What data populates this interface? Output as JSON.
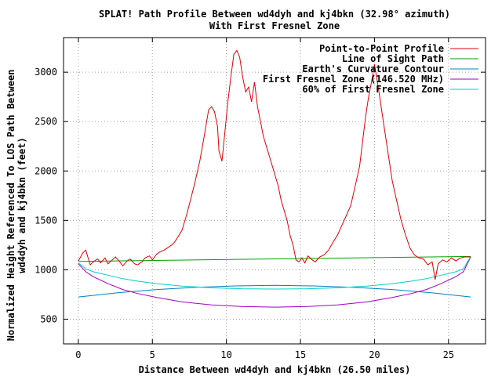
{
  "chart_data": {
    "type": "line",
    "title": "SPLAT! Path Profile Between wd4dyh and kj4bkn (32.98° azimuth)",
    "subtitle": "With First Fresnel Zone",
    "xlabel": "Distance Between wd4dyh and kj4bkn (26.50 miles)",
    "ylabel_line1": "Normalized Height Referenced To LOS Path Between",
    "ylabel_line2": "wd4dyh and kj4bkn (feet)",
    "xlim": [
      -1,
      27.5
    ],
    "ylim": [
      250,
      3350
    ],
    "xticks": [
      0,
      5,
      10,
      15,
      20,
      25
    ],
    "yticks": [
      500,
      1000,
      1500,
      2000,
      2500,
      3000
    ],
    "grid": true,
    "legend_position": "top-right",
    "series": [
      {
        "name": "Point-to-Point Profile",
        "color": "#e00000",
        "x": [
          0,
          0.3,
          0.5,
          0.8,
          1.0,
          1.3,
          1.5,
          1.8,
          2.0,
          2.3,
          2.5,
          2.8,
          3.0,
          3.3,
          3.5,
          3.8,
          4.0,
          4.3,
          4.5,
          4.8,
          5.0,
          5.3,
          5.5,
          5.8,
          6.0,
          6.3,
          6.5,
          6.8,
          7.0,
          7.3,
          7.6,
          7.9,
          8.2,
          8.5,
          8.8,
          9.0,
          9.2,
          9.4,
          9.5,
          9.7,
          9.9,
          10.1,
          10.3,
          10.5,
          10.7,
          10.9,
          11.1,
          11.3,
          11.5,
          11.7,
          11.9,
          12.1,
          12.3,
          12.5,
          12.7,
          12.9,
          13.1,
          13.3,
          13.5,
          13.7,
          13.9,
          14.1,
          14.3,
          14.5,
          14.7,
          14.9,
          15.1,
          15.3,
          15.5,
          15.8,
          16.0,
          16.3,
          16.6,
          16.9,
          17.2,
          17.5,
          17.8,
          18.1,
          18.4,
          18.7,
          19.0,
          19.2,
          19.4,
          19.6,
          19.8,
          20.0,
          20.2,
          20.4,
          20.6,
          20.9,
          21.2,
          21.5,
          21.8,
          22.1,
          22.4,
          22.7,
          23.0,
          23.3,
          23.6,
          23.9,
          24.1,
          24.3,
          24.6,
          24.9,
          25.2,
          25.5,
          25.8,
          26.1,
          26.5
        ],
        "y": [
          1090,
          1170,
          1200,
          1050,
          1080,
          1110,
          1070,
          1120,
          1060,
          1100,
          1130,
          1080,
          1040,
          1090,
          1110,
          1060,
          1050,
          1080,
          1120,
          1140,
          1100,
          1160,
          1180,
          1200,
          1220,
          1250,
          1280,
          1350,
          1400,
          1550,
          1720,
          1900,
          2100,
          2350,
          2620,
          2650,
          2600,
          2450,
          2200,
          2100,
          2400,
          2700,
          2950,
          3180,
          3220,
          3150,
          2950,
          2800,
          2850,
          2700,
          2900,
          2650,
          2500,
          2350,
          2250,
          2150,
          2050,
          1950,
          1850,
          1700,
          1600,
          1500,
          1350,
          1250,
          1100,
          1080,
          1120,
          1070,
          1140,
          1100,
          1080,
          1130,
          1150,
          1200,
          1280,
          1350,
          1450,
          1550,
          1650,
          1850,
          2050,
          2300,
          2550,
          2750,
          2900,
          3080,
          2900,
          2700,
          2500,
          2200,
          1900,
          1700,
          1500,
          1350,
          1220,
          1150,
          1120,
          1110,
          1050,
          1080,
          900,
          1060,
          1100,
          1080,
          1120,
          1090,
          1120,
          1130,
          1130
        ]
      },
      {
        "name": "Line of Sight Path",
        "color": "#00a000",
        "x": [
          0,
          26.5
        ],
        "y": [
          1085,
          1135
        ]
      },
      {
        "name": "Earth's Curvature Contour",
        "color": "#0080c0",
        "x": [
          0,
          2.65,
          5.3,
          7.95,
          10.6,
          13.25,
          15.9,
          18.55,
          21.2,
          23.85,
          26.5
        ],
        "y": [
          725,
          767,
          800,
          823,
          837,
          842,
          837,
          823,
          800,
          767,
          725
        ]
      },
      {
        "name": "First Fresnel Zone (146.520 MHz)",
        "color": "#a000c0",
        "x": [
          0,
          0.5,
          1.0,
          2.0,
          3.0,
          4.0,
          5.3,
          7.0,
          9.0,
          11.0,
          13.25,
          15.5,
          17.5,
          19.5,
          21.2,
          22.5,
          23.5,
          24.5,
          25.5,
          26.0,
          26.5
        ],
        "y": [
          1060,
          980,
          930,
          860,
          800,
          760,
          720,
          675,
          645,
          628,
          622,
          628,
          645,
          675,
          720,
          760,
          800,
          860,
          930,
          980,
          1130
        ]
      },
      {
        "name": "60% of First Fresnel Zone",
        "color": "#00d0d0",
        "x": [
          0,
          0.5,
          1.0,
          2.0,
          3.0,
          4.0,
          5.3,
          7.0,
          9.0,
          11.0,
          13.25,
          15.5,
          17.5,
          19.5,
          21.2,
          22.5,
          23.5,
          24.5,
          25.5,
          26.0,
          26.5
        ],
        "y": [
          1070,
          1010,
          980,
          945,
          910,
          885,
          860,
          835,
          818,
          808,
          805,
          808,
          818,
          835,
          860,
          885,
          910,
          945,
          980,
          1010,
          1135
        ]
      }
    ]
  }
}
